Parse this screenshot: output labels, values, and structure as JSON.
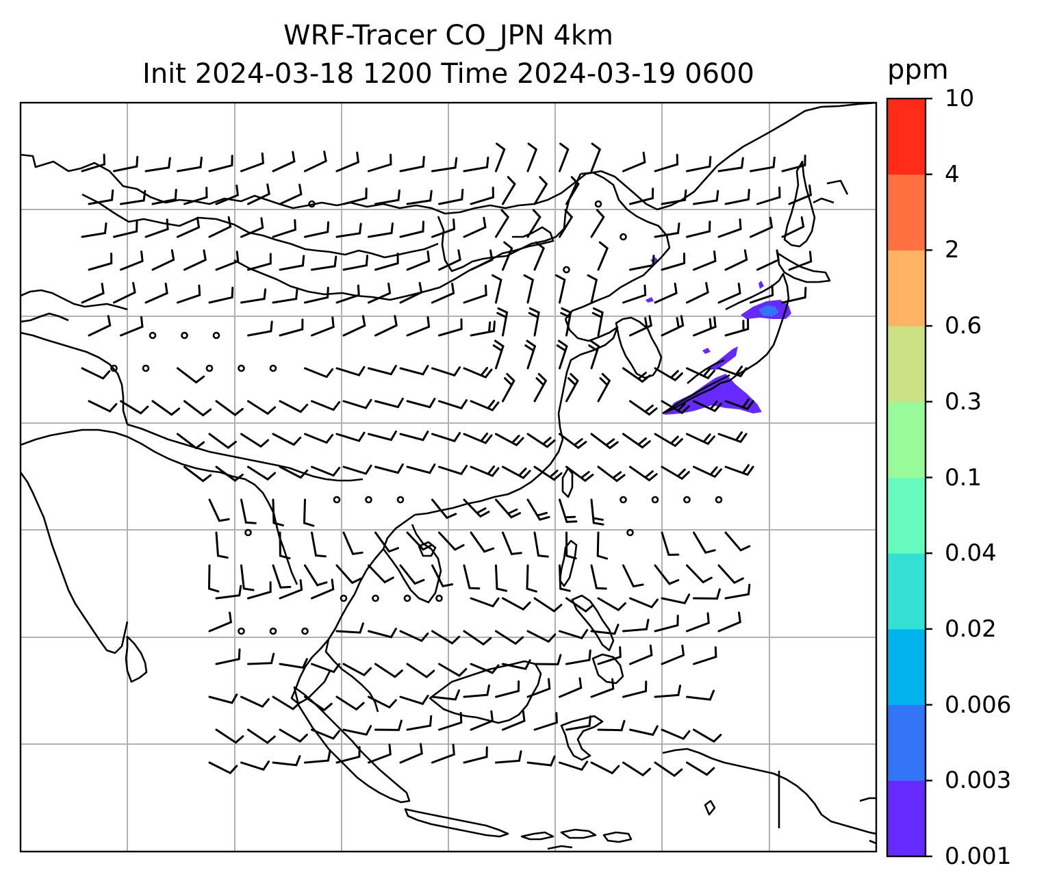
{
  "title": {
    "line1": "WRF-Tracer CO_JPN 4km",
    "line2": "Init 2024-03-18 1200 Time 2024-03-19 0600"
  },
  "colorbar": {
    "unit": "ppm",
    "levels": [
      "0.001",
      "0.003",
      "0.006",
      "0.02",
      "0.04",
      "0.1",
      "0.3",
      "0.6",
      "2",
      "4",
      "10"
    ],
    "colors": [
      "#6629ff",
      "#3374f5",
      "#00b3ec",
      "#33e0d4",
      "#66fbbd",
      "#99fa9c",
      "#cce184",
      "#ffb263",
      "#ff7140",
      "#ff2b18"
    ]
  },
  "map": {
    "gridlines": true,
    "plume_color": "#6629ff",
    "plume_secondary_color": "#3374f5",
    "coastline_color": "#000000",
    "grid_color": "#b0b0b0"
  }
}
